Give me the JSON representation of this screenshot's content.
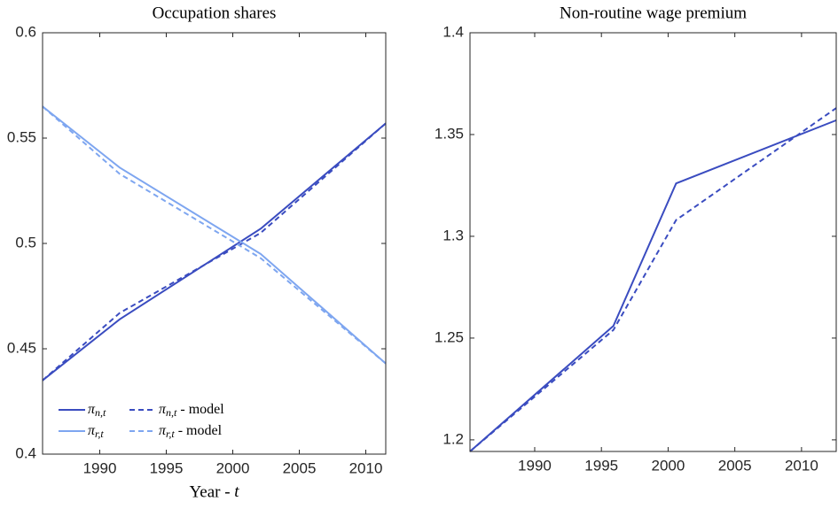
{
  "chart_data": [
    {
      "type": "line",
      "title": "Occupation shares",
      "x_label": "Year - t",
      "x": [
        1985.7,
        1991.5,
        2002.1,
        2011.5
      ],
      "xlim": [
        1985.7,
        2011.5
      ],
      "xticks": [
        1990,
        1995,
        2000,
        2005,
        2010
      ],
      "ylim": [
        0.4,
        0.6
      ],
      "yticks": [
        0.4,
        0.45,
        0.5,
        0.55,
        0.6
      ],
      "legend": "lower left",
      "series": [
        {
          "name": "πn,t",
          "color": "#3a4cc0",
          "dashed": false,
          "values": [
            0.435,
            0.464,
            0.507,
            0.557
          ]
        },
        {
          "name": "πn,t - model",
          "color": "#3a4cc0",
          "dashed": true,
          "values": [
            0.435,
            0.467,
            0.505,
            0.557
          ]
        },
        {
          "name": "πr,t",
          "color": "#7ea6f0",
          "dashed": false,
          "values": [
            0.565,
            0.536,
            0.495,
            0.443
          ]
        },
        {
          "name": "πr,t - model",
          "color": "#7ea6f0",
          "dashed": true,
          "values": [
            0.565,
            0.533,
            0.493,
            0.443
          ]
        }
      ]
    },
    {
      "type": "line",
      "title": "Non-routine wage premium",
      "x": [
        1985.15,
        1995.9,
        2000.6,
        2012.6
      ],
      "xlim": [
        1985.15,
        2012.6
      ],
      "xticks": [
        1990,
        1995,
        2000,
        2005,
        2010
      ],
      "ylim": [
        1.1943,
        1.4
      ],
      "yticks": [
        1.2,
        1.25,
        1.3,
        1.35,
        1.4
      ],
      "series": [
        {
          "color": "#3a4cc0",
          "dashed": false,
          "values": [
            1.1943,
            1.256,
            1.326,
            1.357
          ]
        },
        {
          "color": "#3a4cc0",
          "dashed": true,
          "values": [
            1.1943,
            1.254,
            1.308,
            1.363
          ]
        }
      ]
    }
  ]
}
